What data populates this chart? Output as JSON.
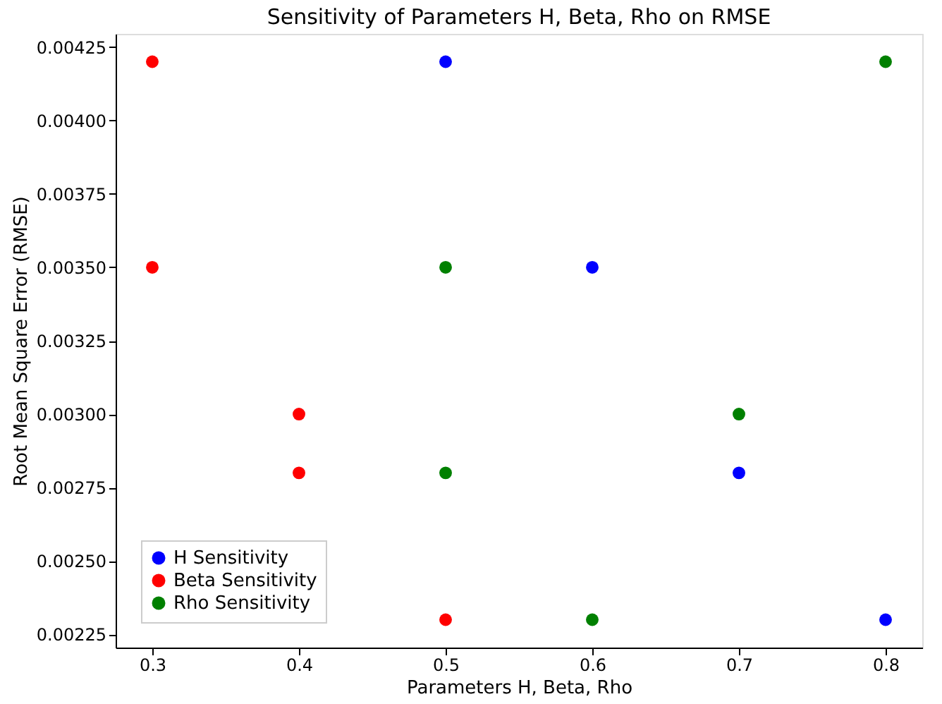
{
  "chart_data": {
    "type": "scatter",
    "title": "Sensitivity of Parameters H, Beta, Rho on RMSE",
    "xlabel": "Parameters H, Beta, Rho",
    "ylabel": "Root Mean Square Error (RMSE)",
    "series": [
      {
        "name": "H Sensitivity",
        "color": "#0000ff",
        "x": [
          0.5,
          0.6,
          0.7,
          0.8
        ],
        "values": [
          0.0042,
          0.0035,
          0.0028,
          0.0023
        ]
      },
      {
        "name": "Beta Sensitivity",
        "color": "#ff0000",
        "x": [
          0.3,
          0.3,
          0.4,
          0.4,
          0.5
        ],
        "values": [
          0.0042,
          0.0035,
          0.003,
          0.0028,
          0.0023
        ]
      },
      {
        "name": "Rho Sensitivity",
        "color": "#008000",
        "x": [
          0.5,
          0.5,
          0.6,
          0.7,
          0.8
        ],
        "values": [
          0.0035,
          0.0028,
          0.0023,
          0.003,
          0.0042
        ]
      }
    ],
    "xlim": [
      0.275,
      0.825
    ],
    "xticks": [
      0.3,
      0.4,
      0.5,
      0.6,
      0.7,
      0.8
    ],
    "ylim": [
      0.002205,
      0.004295
    ],
    "yticks": [
      0.00225,
      {
        "value": 0.0025,
        "label": "0.00250"
      },
      0.00275,
      {
        "value": 0.003,
        "label": "0.00300"
      },
      0.00325,
      {
        "value": 0.0035,
        "label": "0.00350"
      },
      0.00375,
      {
        "value": 0.004,
        "label": "0.00400"
      },
      0.00425
    ],
    "grid": false,
    "legend": "bottom left",
    "marker": "circle"
  }
}
